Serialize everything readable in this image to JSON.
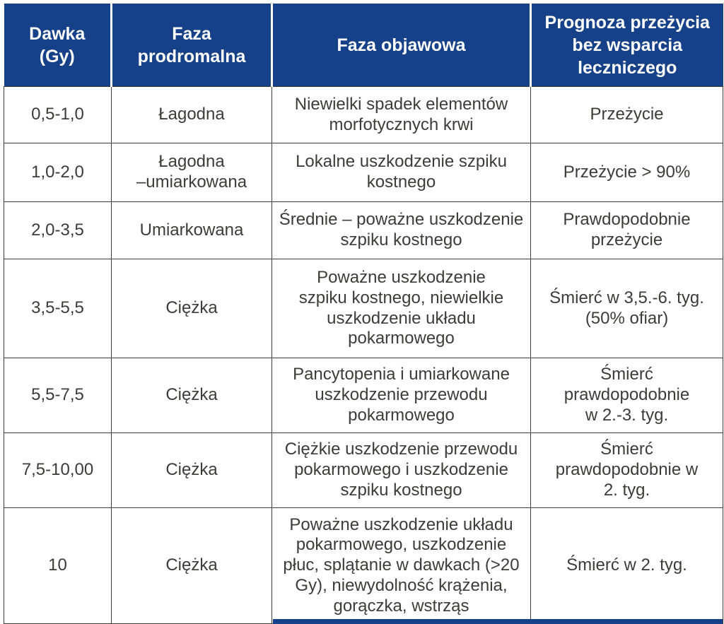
{
  "colors": {
    "header_bg": "#164189",
    "header_text": "#ffffff",
    "body_text": "#3c3c3b",
    "grid_border": "#3c3c3b"
  },
  "table": {
    "headers": [
      {
        "label": "Dawka (Gy)"
      },
      {
        "label": "Faza\nprodromalna"
      },
      {
        "label": "Faza objawowa"
      },
      {
        "label": "Prognoza przeżycia\nbez wsparcia\nleczniczego"
      }
    ],
    "rows": [
      {
        "dose": "0,5-1,0",
        "prodromal": "Łagodna",
        "symptoms": "Niewielki spadek elementów\nmorfotycznych krwi",
        "prognosis": "Przeżycie"
      },
      {
        "dose": "1,0-2,0",
        "prodromal": "Łagodna\n–umiarkowana",
        "symptoms": "Lokalne uszkodzenie szpiku\nkostnego",
        "prognosis": "Przeżycie > 90%"
      },
      {
        "dose": "2,0-3,5",
        "prodromal": "Umiarkowana",
        "symptoms": "Średnie – poważne uszkodzenie\nszpiku kostnego",
        "prognosis": "Prawdopodobnie\nprzeżycie"
      },
      {
        "dose": "3,5-5,5",
        "prodromal": "Ciężka",
        "symptoms": "Poważne uszkodzenie\nszpiku kostnego, niewielkie\nuszkodzenie układu\npokarmowego",
        "prognosis": "Śmierć w 3,5.-6. tyg.\n(50% ofiar)"
      },
      {
        "dose": "5,5-7,5",
        "prodromal": "Ciężka",
        "symptoms": "Pancytopenia i umiarkowane\nuszkodzenie przewodu\npokarmowego",
        "prognosis": "Śmierć\nprawdopodobnie\nw 2.-3. tyg."
      },
      {
        "dose": "7,5-10,00",
        "prodromal": "Ciężka",
        "symptoms": "Ciężkie uszkodzenie przewodu\npokarmowego i uszkodzenie\nszpiku kostnego",
        "prognosis": "Śmierć\nprawdopodobnie w\n2. tyg."
      },
      {
        "dose": "10",
        "prodromal": "Ciężka",
        "symptoms": "Poważne uszkodzenie układu\npokarmowego, uszkodzenie\npłuc, splątanie w dawkach (>20\nGy), niewydolność krążenia,\ngorączka, wstrząs",
        "prognosis": "Śmierć w 2. tyg."
      }
    ]
  },
  "chart_data": {
    "type": "table",
    "columns": [
      "Dawka (Gy)",
      "Faza prodromalna",
      "Faza objawowa",
      "Prognoza przeżycia bez wsparcia leczniczego"
    ],
    "rows": [
      [
        "0,5-1,0",
        "Łagodna",
        "Niewielki spadek elementów morfotycznych krwi",
        "Przeżycie"
      ],
      [
        "1,0-2,0",
        "Łagodna –umiarkowana",
        "Lokalne uszkodzenie szpiku kostnego",
        "Przeżycie > 90%"
      ],
      [
        "2,0-3,5",
        "Umiarkowana",
        "Średnie – poważne uszkodzenie szpiku kostnego",
        "Prawdopodobnie przeżycie"
      ],
      [
        "3,5-5,5",
        "Ciężka",
        "Poważne uszkodzenie szpiku kostnego, niewielkie uszkodzenie układu pokarmowego",
        "Śmierć w 3,5.-6. tyg. (50% ofiar)"
      ],
      [
        "5,5-7,5",
        "Ciężka",
        "Pancytopenia i umiarkowane uszkodzenie przewodu pokarmowego",
        "Śmierć prawdopodobnie w 2.-3. tyg."
      ],
      [
        "7,5-10,00",
        "Ciężka",
        "Ciężkie uszkodzenie przewodu pokarmowego i uszkodzenie szpiku kostnego",
        "Śmierć prawdopodobnie w 2. tyg."
      ],
      [
        "10",
        "Ciężka",
        "Poważne uszkodzenie układu pokarmowego, uszkodzenie płuc, splątanie w dawkach (>20 Gy), niewydolność krążenia, gorączka, wstrząs",
        "Śmierć w 2. tyg."
      ]
    ],
    "title": "",
    "legend": "none",
    "grid": "on"
  }
}
